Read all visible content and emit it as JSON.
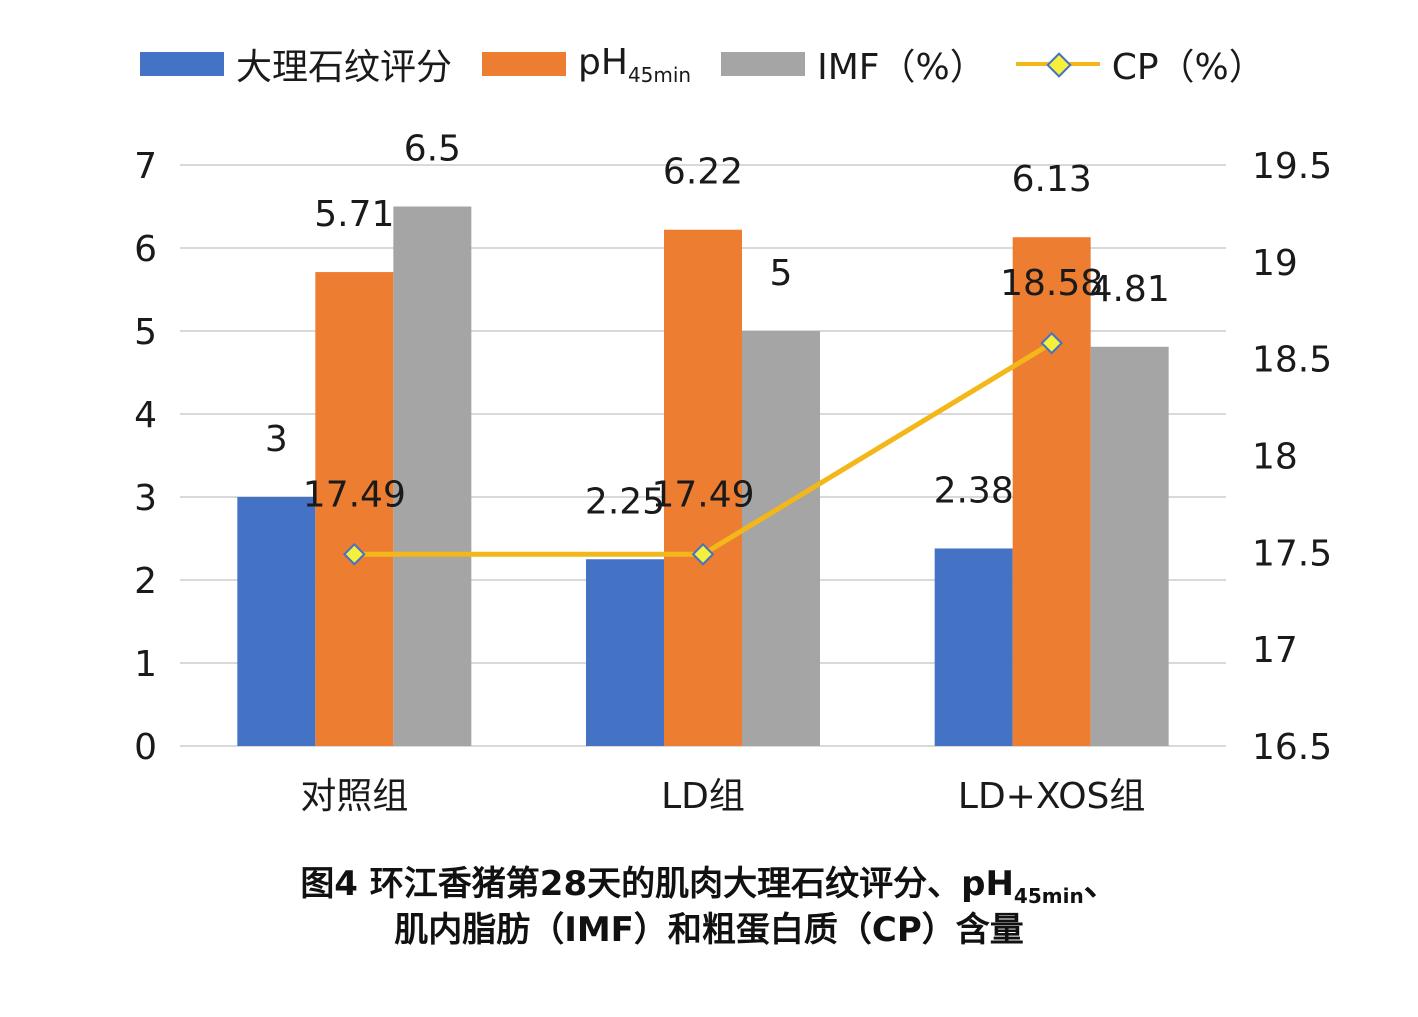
{
  "legend": {
    "s1": "大理石纹评分",
    "s2_main": "pH",
    "s2_sub": "45min",
    "s3": "IMF（%）",
    "s4": "CP（%）"
  },
  "caption": {
    "line1_pre": "图4 环江香猪第28天的肌肉大理石纹评分、pH",
    "line1_sub": "45min",
    "line1_post": "、",
    "line2": "肌内脂肪（IMF）和粗蛋白质（CP）含量"
  },
  "colors": {
    "marbling": "#4472c4",
    "ph": "#ed7d31",
    "imf": "#a5a5a5",
    "cp": "#f4b71a",
    "cp_marker_fill": "#f6ef3c",
    "cp_marker_edge": "#4472c4",
    "grid": "#d9d9d9"
  },
  "chart_data": {
    "type": "bar",
    "categories": [
      "对照组",
      "LD组",
      "LD+XOS组"
    ],
    "series": [
      {
        "name": "大理石纹评分",
        "axis": "left",
        "values": [
          3,
          2.25,
          2.38
        ],
        "labels": [
          "3",
          "2.25",
          "2.38"
        ]
      },
      {
        "name": "pH45min",
        "axis": "left",
        "values": [
          5.71,
          6.22,
          6.13
        ],
        "labels": [
          "5.71",
          "6.22",
          "6.13"
        ]
      },
      {
        "name": "IMF（%）",
        "axis": "left",
        "values": [
          6.5,
          5,
          4.81
        ],
        "labels": [
          "6.5",
          "5",
          "4.81"
        ]
      },
      {
        "name": "CP（%）",
        "axis": "right",
        "type": "line",
        "values": [
          17.49,
          17.49,
          18.58
        ],
        "labels": [
          "17.49",
          "17.49",
          "18.58"
        ]
      }
    ],
    "y_left": {
      "min": 0,
      "max": 7,
      "ticks": [
        "0",
        "1",
        "2",
        "3",
        "4",
        "5",
        "6",
        "7"
      ]
    },
    "y_right": {
      "min": 16.5,
      "max": 19.5,
      "ticks": [
        "16.5",
        "17",
        "17.5",
        "18",
        "18.5",
        "19",
        "19.5"
      ]
    },
    "grid": true,
    "legend_position": "top"
  }
}
